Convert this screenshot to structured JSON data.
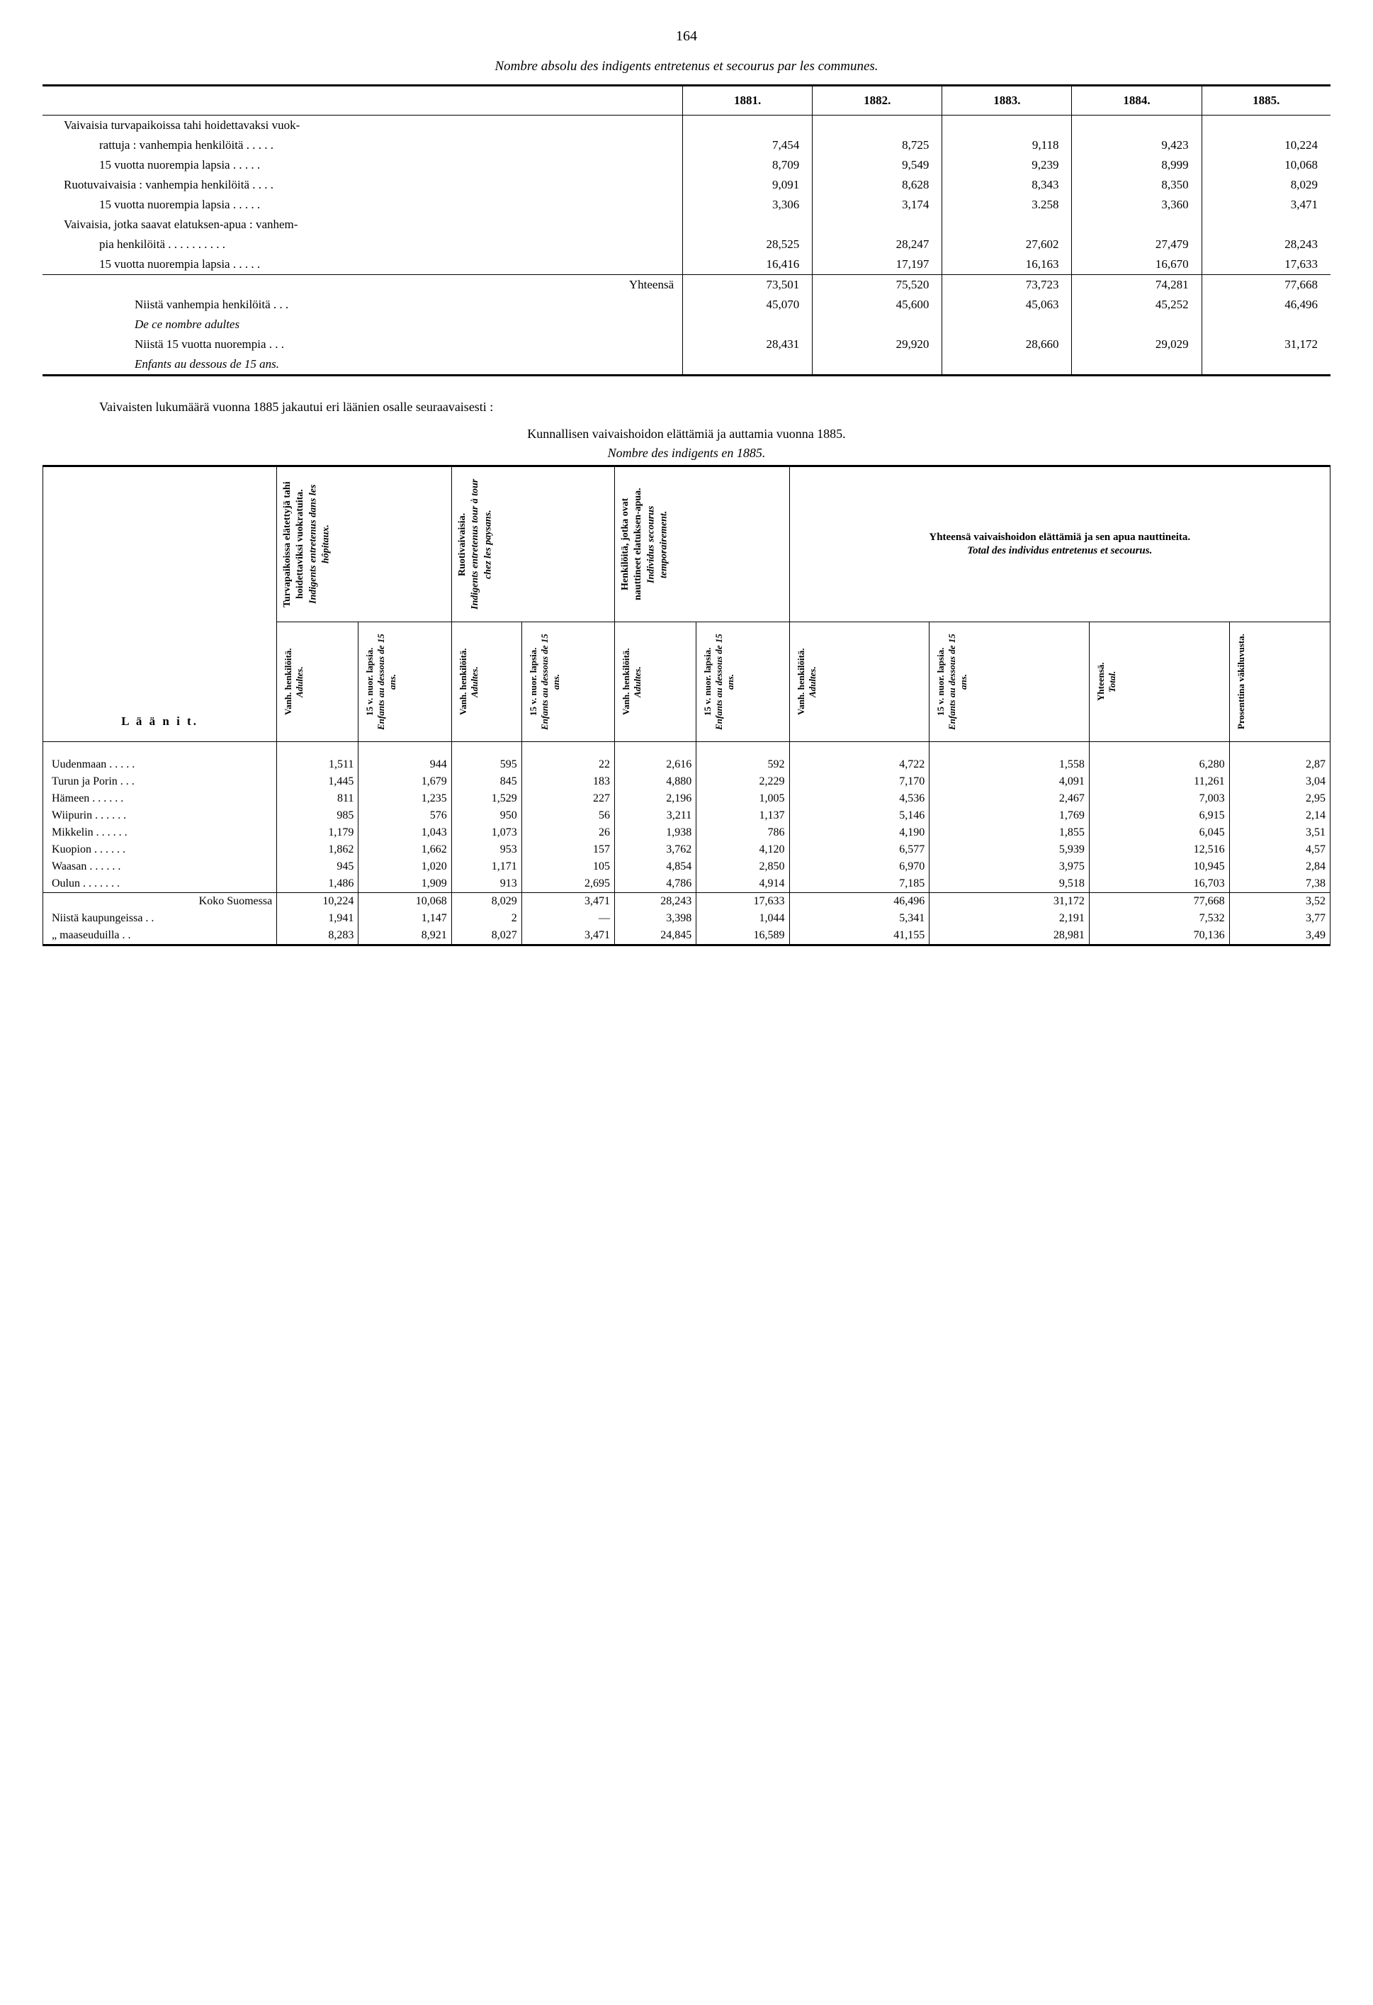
{
  "page_number": "164",
  "title1": "Nombre absolu des indigents entretenus et secourus par les communes.",
  "table1": {
    "years": [
      "1881.",
      "1882.",
      "1883.",
      "1884.",
      "1885."
    ],
    "rows": [
      {
        "label": "Vaivaisia turvapaikoissa tahi hoidettavaksi vuok-",
        "class": "label-cell",
        "vals": [
          "",
          "",
          "",
          "",
          ""
        ]
      },
      {
        "label": "rattuja : vanhempia henkilöitä   .   .   .   .   .",
        "class": "label-cell indent1",
        "vals": [
          "7,454",
          "8,725",
          "9,118",
          "9,423",
          "10,224"
        ]
      },
      {
        "label": "15 vuotta nuorempia lapsia   .   .   .   .   .",
        "class": "label-cell indent1",
        "vals": [
          "8,709",
          "9,549",
          "9,239",
          "8,999",
          "10,068"
        ]
      },
      {
        "label": "Ruotuvaivaisia : vanhempia henkilöitä   .   .   .   .",
        "class": "label-cell",
        "vals": [
          "9,091",
          "8,628",
          "8,343",
          "8,350",
          "8,029"
        ]
      },
      {
        "label": "15 vuotta nuorempia lapsia   .   .   .   .   .",
        "class": "label-cell indent1",
        "vals": [
          "3,306",
          "3,174",
          "3.258",
          "3,360",
          "3,471"
        ]
      },
      {
        "label": "Vaivaisia, jotka saavat elatuksen-apua : vanhem-",
        "class": "label-cell",
        "vals": [
          "",
          "",
          "",
          "",
          ""
        ]
      },
      {
        "label": "pia henkilöitä   .   .   .   .   .   .   .   .   .   .",
        "class": "label-cell indent1",
        "vals": [
          "28,525",
          "28,247",
          "27,602",
          "27,479",
          "28,243"
        ]
      },
      {
        "label": "15 vuotta nuorempia lapsia   .   .   .   .   .",
        "class": "label-cell indent1",
        "vals": [
          "16,416",
          "17,197",
          "16,163",
          "16,670",
          "17,633"
        ]
      }
    ],
    "sum_label": "Yhteensä",
    "sum_vals": [
      "73,501",
      "75,520",
      "73,723",
      "74,281",
      "77,668"
    ],
    "sub1_label": "Niistä vanhempia henkilöitä .   .   .",
    "sub1_vals": [
      "45,070",
      "45,600",
      "45,063",
      "45,252",
      "46,496"
    ],
    "sub1_fr": "De ce nombre adultes",
    "sub2_label": "Niistä 15 vuotta nuorempia .   .   .",
    "sub2_vals": [
      "28,431",
      "29,920",
      "28,660",
      "29,029",
      "31,172"
    ],
    "sub2_fr": "Enfants au dessous de 15 ans."
  },
  "paragraph": "Vaivaisten lukumäärä vuonna 1885 jakautui eri läänien osalle seuraavaisesti :",
  "subtitle_fi": "Kunnallisen vaivaishoidon elättämiä ja auttamia vuonna 1885.",
  "subtitle_fr": "Nombre des indigents en 1885.",
  "table2": {
    "laanit": "L ä ä n i t.",
    "group_headers": [
      {
        "fi": "Turvapaikoissa elätettyjä tahi hoidettaviksi vuokratuita.",
        "fr": "Indigents entretenus dans les hôpitaux."
      },
      {
        "fi": "Ruotivaivaisia.",
        "fr": "Indigents entretenus tour à tour chez les paysans."
      },
      {
        "fi": "Henkilöitä, jotka ovat nauttineet elatuksen-apua.",
        "fr": "Individus secourus temporairement."
      }
    ],
    "group4_fi": "Yhteensä vaivaishoidon elättämiä ja sen apua nauttineita.",
    "group4_fr": "Total des individus entretenus et secourus.",
    "sub_adults_fi": "Vanh. henkilöitä.",
    "sub_adults_fr": "Adultes.",
    "sub_child_fi": "15 v. nuor. lapsia.",
    "sub_child_fr": "Enfants au dessous de 15 ans.",
    "sub_total_fi": "Yhteensä.",
    "sub_total_fr": "Total.",
    "sub_pct": "Prosenttina väkiluvusta.",
    "rows": [
      {
        "label": "Uudenmaan .   .   .   .   .",
        "v": [
          "1,511",
          "944",
          "595",
          "22",
          "2,616",
          "592",
          "4,722",
          "1,558",
          "6,280",
          "2,87"
        ]
      },
      {
        "label": "Turun ja Porin   .   .   .",
        "v": [
          "1,445",
          "1,679",
          "845",
          "183",
          "4,880",
          "2,229",
          "7,170",
          "4,091",
          "11,261",
          "3,04"
        ]
      },
      {
        "label": "Hämeen .   .   .   .   .   .",
        "v": [
          "811",
          "1,235",
          "1,529",
          "227",
          "2,196",
          "1,005",
          "4,536",
          "2,467",
          "7,003",
          "2,95"
        ]
      },
      {
        "label": "Wiipurin .   .   .   .   .   .",
        "v": [
          "985",
          "576",
          "950",
          "56",
          "3,211",
          "1,137",
          "5,146",
          "1,769",
          "6,915",
          "2,14"
        ]
      },
      {
        "label": "Mikkelin .   .   .   .   .   .",
        "v": [
          "1,179",
          "1,043",
          "1,073",
          "26",
          "1,938",
          "786",
          "4,190",
          "1,855",
          "6,045",
          "3,51"
        ]
      },
      {
        "label": "Kuopion .   .   .   .   .   .",
        "v": [
          "1,862",
          "1,662",
          "953",
          "157",
          "3,762",
          "4,120",
          "6,577",
          "5,939",
          "12,516",
          "4,57"
        ]
      },
      {
        "label": "Waasan   .   .   .   .   .   .",
        "v": [
          "945",
          "1,020",
          "1,171",
          "105",
          "4,854",
          "2,850",
          "6,970",
          "3,975",
          "10,945",
          "2,84"
        ]
      },
      {
        "label": "Oulun .   .   .   .   .   .   .",
        "v": [
          "1,486",
          "1,909",
          "913",
          "2,695",
          "4,786",
          "4,914",
          "7,185",
          "9,518",
          "16,703",
          "7,38"
        ]
      }
    ],
    "total_label": "Koko Suomessa",
    "total_vals": [
      "10,224",
      "10,068",
      "8,029",
      "3,471",
      "28,243",
      "17,633",
      "46,496",
      "31,172",
      "77,668",
      "3,52"
    ],
    "kaup_label": "Niistä kaupungeissa .   .",
    "kaup_vals": [
      "1,941",
      "1,147",
      "2",
      "—",
      "3,398",
      "1,044",
      "5,341",
      "2,191",
      "7,532",
      "3,77"
    ],
    "maas_label": "   „      maaseuduilla .   .",
    "maas_vals": [
      "8,283",
      "8,921",
      "8,027",
      "3,471",
      "24,845",
      "16,589",
      "41,155",
      "28,981",
      "70,136",
      "3,49"
    ]
  }
}
